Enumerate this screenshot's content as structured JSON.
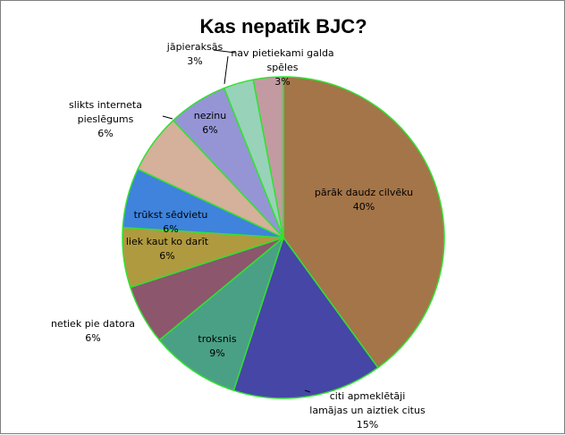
{
  "chart_data": {
    "type": "pie",
    "title": "Kas nepatīk BJC?",
    "slices": [
      {
        "label": [
          "pārāk daudz cilvēku"
        ],
        "pct_label": "40%",
        "value": 40,
        "color": "#a47548"
      },
      {
        "label": [
          "citi apmeklētāji",
          "lamājas un aiztiek citus"
        ],
        "pct_label": "15%",
        "value": 15,
        "color": "#4646a6"
      },
      {
        "label": [
          "troksnis"
        ],
        "pct_label": "9%",
        "value": 9,
        "color": "#4aa084"
      },
      {
        "label": [
          "netiek pie datora"
        ],
        "pct_label": "6%",
        "value": 6,
        "color": "#8c566d"
      },
      {
        "label": [
          "liek kaut ko darīt"
        ],
        "pct_label": "6%",
        "value": 6,
        "color": "#b09a3f"
      },
      {
        "label": [
          "trūkst sēdvietu"
        ],
        "pct_label": "6%",
        "value": 6,
        "color": "#3f83dc"
      },
      {
        "label": [
          "slikts interneta",
          "pieslēgums"
        ],
        "pct_label": "6%",
        "value": 6,
        "color": "#d5b09a"
      },
      {
        "label": [
          "nezinu"
        ],
        "pct_label": "6%",
        "value": 6,
        "color": "#9595d6"
      },
      {
        "label": [
          "jāpieraksās"
        ],
        "pct_label": "3%",
        "value": 3,
        "color": "#98d2b8"
      },
      {
        "label": [
          "nav pietiekami galda",
          "spēles"
        ],
        "pct_label": "3%",
        "value": 3,
        "color": "#c39aa2"
      }
    ],
    "edge_color": "#33e033",
    "legend": "none"
  }
}
